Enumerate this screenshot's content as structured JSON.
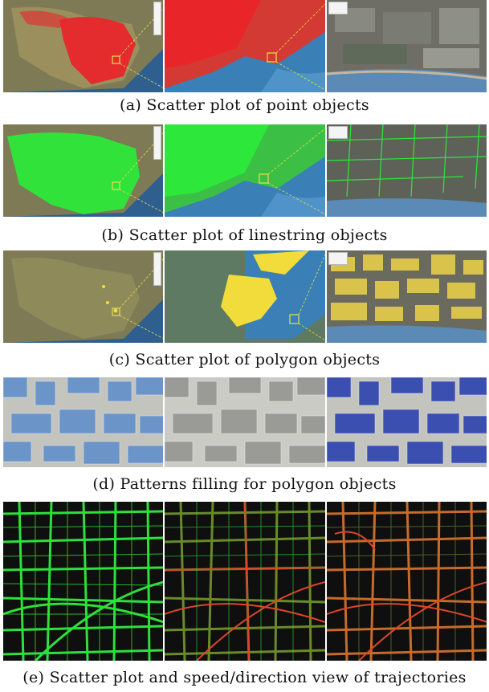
{
  "captions": {
    "a": "(a) Scatter plot of point objects",
    "b": "(b) Scatter plot of linestring objects",
    "c": "(c) Scatter plot of polygon objects",
    "d": "(d) Patterns filling for polygon objects",
    "e": "(e) Scatter plot and speed/direction view of trajectories"
  },
  "colors": {
    "points": "#e8262a",
    "linestrings": "#2de83a",
    "polygons": "#f2dc3c",
    "pattern_light": "#6b95c9",
    "pattern_dark": "#3a4fb0",
    "trajectory_green": "#2ee03a",
    "trajectory_red": "#e0442a",
    "zoom_box": "#e8e14a"
  }
}
